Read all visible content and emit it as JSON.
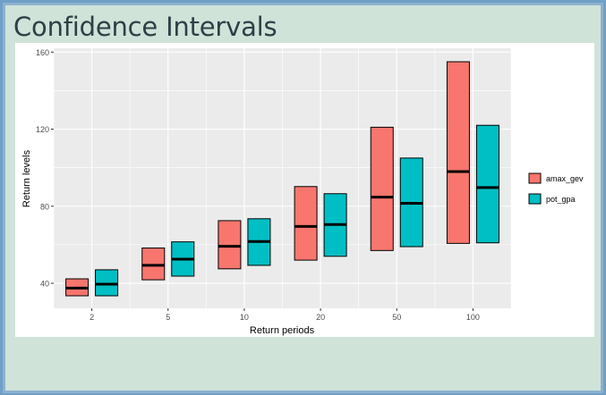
{
  "page": {
    "title": "Confidence Intervals"
  },
  "chart_data": {
    "type": "bar",
    "subtype": "crossbar",
    "xlabel": "Return periods",
    "ylabel": "Return levels",
    "categories": [
      "2",
      "5",
      "10",
      "20",
      "50",
      "100"
    ],
    "ylim": [
      27,
      162
    ],
    "yticks": [
      40,
      80,
      120,
      160
    ],
    "grid": true,
    "legend_position": "right",
    "series": [
      {
        "name": "amax_gev",
        "color": "#f8766d",
        "lower": [
          33.5,
          41.8,
          47.5,
          52.0,
          57.0,
          60.7
        ],
        "middle": [
          37.5,
          49.3,
          59.2,
          69.5,
          84.7,
          98.0
        ],
        "upper": [
          42.3,
          58.3,
          72.5,
          90.2,
          121.0,
          155.0
        ]
      },
      {
        "name": "pot_gpa",
        "color": "#00bfc4",
        "lower": [
          33.5,
          43.7,
          49.3,
          54.0,
          59.0,
          61.0
        ],
        "middle": [
          39.5,
          52.5,
          61.7,
          70.5,
          81.5,
          89.7
        ],
        "upper": [
          47.0,
          61.5,
          73.5,
          86.5,
          105.0,
          122.0
        ]
      }
    ]
  }
}
